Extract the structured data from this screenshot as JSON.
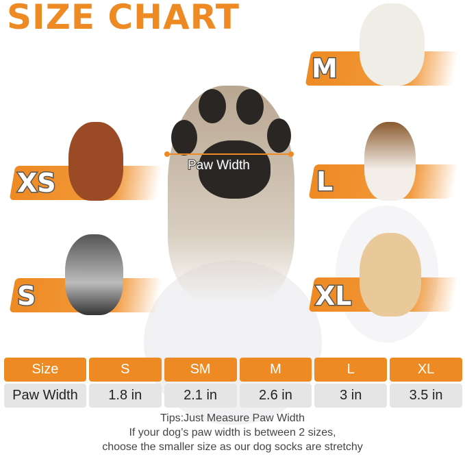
{
  "title": "SIZE CHART",
  "colors": {
    "accent": "#EE8A23",
    "cell_bg": "#E5E5E5"
  },
  "paw": {
    "measure_label": "Paw Width"
  },
  "dog_labels": {
    "xs": "XS",
    "s": "S",
    "m": "M",
    "l": "L",
    "xl": "XL"
  },
  "table": {
    "header": [
      "Size",
      "S",
      "SM",
      "M",
      "L",
      "XL"
    ],
    "row": [
      "Paw Width",
      "1.8 in",
      "2.1 in",
      "2.6 in",
      "3 in",
      "3.5 in"
    ]
  },
  "tips": [
    "Tips:Just Measure Paw Width",
    "If your dog’s paw width is between 2 sizes,",
    "choose the smaller size as our dog socks are stretchy"
  ]
}
